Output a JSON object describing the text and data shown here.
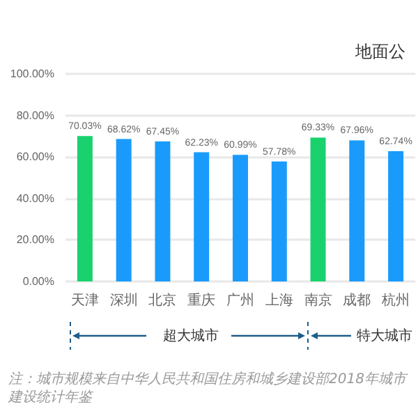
{
  "chart_data": {
    "type": "bar",
    "title": "地面公",
    "categories": [
      "天津",
      "深圳",
      "北京",
      "重庆",
      "广州",
      "上海",
      "南京",
      "成都",
      "杭州"
    ],
    "values": [
      70.03,
      68.62,
      67.45,
      62.23,
      60.99,
      57.78,
      69.33,
      67.96,
      62.74
    ],
    "value_labels": [
      "70.03%",
      "68.62%",
      "67.45%",
      "62.23%",
      "60.99%",
      "57.78%",
      "69.33%",
      "67.96%",
      "62.74%"
    ],
    "colors": [
      "#19d26e",
      "#1a9bfc",
      "#1a9bfc",
      "#1a9bfc",
      "#1a9bfc",
      "#1a9bfc",
      "#19d26e",
      "#1a9bfc",
      "#1a9bfc"
    ],
    "ylim": [
      0,
      100
    ],
    "yticks": [
      {
        "value": 0,
        "label": "0.00%"
      },
      {
        "value": 20,
        "label": "20.00%"
      },
      {
        "value": 40,
        "label": "40.00%"
      },
      {
        "value": 60,
        "label": "60.00%"
      },
      {
        "value": 80,
        "label": "80.00%"
      },
      {
        "value": 100,
        "label": "100.00%"
      }
    ],
    "grid": "y",
    "annotations": [
      "超大城市",
      "特大城市",
      "注：城市规模来自中华人民共和国住房和城乡建设部2018年城市建设统计年鉴"
    ]
  }
}
